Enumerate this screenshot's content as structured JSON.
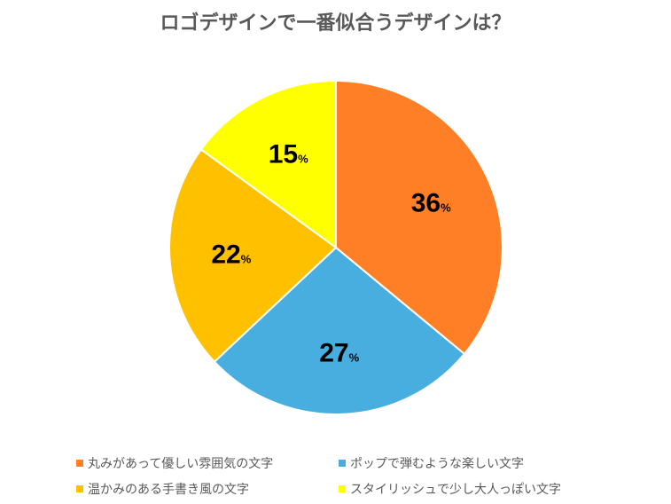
{
  "chart_data": {
    "type": "pie",
    "title": "ロゴデザインで一番似合うデザインは？",
    "unit": "%",
    "slices": [
      {
        "label": "丸みがあって優しい雰囲気の文字",
        "value": 36,
        "color": "#FF7F27"
      },
      {
        "label": "ポップで弾むような楽しい文字",
        "value": 27,
        "color": "#47AEDF"
      },
      {
        "label": "温かみのある手書き風の文字",
        "value": 22,
        "color": "#FFC000"
      },
      {
        "label": "スタイリッシュで少し大人っぽい文字",
        "value": 15,
        "color": "#FFFF00"
      }
    ],
    "legend_position": "bottom"
  }
}
